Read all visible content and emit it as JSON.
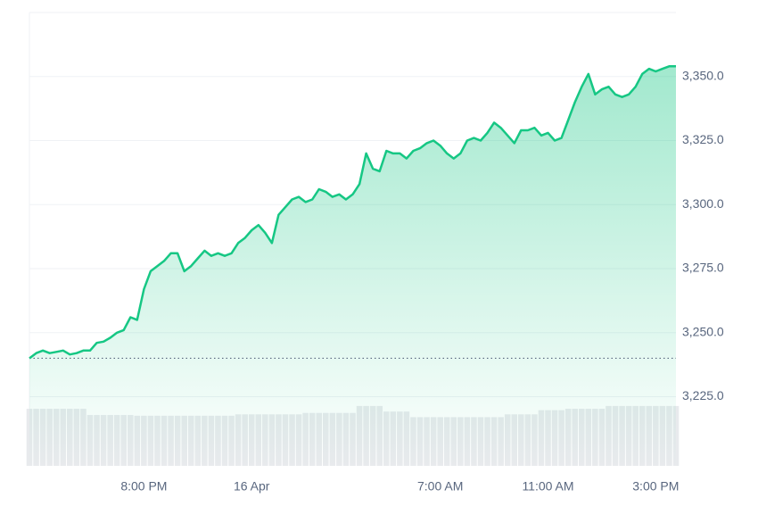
{
  "chart_data": {
    "type": "line",
    "categories": [
      null,
      null,
      null,
      null,
      null,
      null,
      null,
      null,
      null,
      null,
      null,
      null,
      null,
      null,
      null,
      null,
      null,
      "8:00 PM",
      null,
      null,
      null,
      null,
      null,
      null,
      null,
      null,
      null,
      null,
      null,
      null,
      null,
      null,
      null,
      "16 Apr",
      null,
      null,
      null,
      null,
      null,
      null,
      null,
      null,
      null,
      null,
      null,
      null,
      null,
      null,
      null,
      null,
      null,
      null,
      null,
      null,
      null,
      null,
      null,
      null,
      null,
      null,
      null,
      "7:00 AM",
      null,
      null,
      null,
      null,
      null,
      null,
      null,
      null,
      null,
      null,
      null,
      null,
      null,
      null,
      null,
      "11:00 AM",
      null,
      null,
      null,
      null,
      null,
      null,
      null,
      null,
      null,
      null,
      null,
      null,
      null,
      null,
      null,
      "3:00 PM",
      null,
      null,
      null
    ],
    "series": [
      {
        "color": "#16c784",
        "values": [
          3240,
          3242,
          3243,
          3242,
          3242.5,
          3243,
          3241.5,
          3242,
          3243,
          3243,
          3246,
          3246.5,
          3248,
          3250,
          3251,
          3256,
          3255,
          3267,
          3274,
          3276,
          3278,
          3281,
          3281,
          3274,
          3276,
          3279,
          3282,
          3280,
          3281,
          3280,
          3281,
          3285,
          3287,
          3290,
          3292,
          3289,
          3285,
          3296,
          3299,
          3302,
          3303,
          3301,
          3302,
          3306,
          3305,
          3303,
          3304,
          3302,
          3304,
          3308,
          3320,
          3314,
          3313,
          3321,
          3320,
          3320,
          3318,
          3321,
          3322,
          3324,
          3325,
          3323,
          3320,
          3318,
          3320,
          3325,
          3326,
          3325,
          3328,
          3332,
          3330,
          3327,
          3324,
          3329,
          3329,
          3330,
          3327,
          3328,
          3325,
          3326,
          3333,
          3340,
          3346,
          3351,
          3343,
          3345,
          3346,
          3343,
          3342,
          3343,
          3346,
          3351,
          3353,
          3352,
          3353,
          3354,
          3354
        ]
      }
    ],
    "volume": {
      "color": "#e8eaed",
      "ylim": [
        0,
        100
      ],
      "values": [
        82,
        82,
        82,
        82,
        82,
        82,
        82,
        82,
        82,
        73,
        73,
        73,
        73,
        73,
        73,
        73,
        72,
        72,
        72,
        72,
        72,
        72,
        72,
        72,
        72,
        72,
        72,
        72,
        72,
        72,
        72,
        74,
        74,
        74,
        74,
        74,
        74,
        74,
        74,
        74,
        74,
        76,
        76,
        76,
        76,
        76,
        76,
        76,
        76,
        86,
        86,
        86,
        86,
        78,
        78,
        78,
        78,
        70,
        70,
        70,
        70,
        70,
        70,
        70,
        70,
        70,
        70,
        70,
        70,
        70,
        70,
        74,
        74,
        74,
        74,
        74,
        80,
        80,
        80,
        80,
        82,
        82,
        82,
        82,
        82,
        82,
        86,
        86,
        86,
        86,
        86,
        86,
        86,
        86,
        86,
        86,
        86
      ]
    },
    "ylim": [
      3198,
      3375
    ],
    "yticks": [
      {
        "value": 3225,
        "label": "3,225.0"
      },
      {
        "value": 3250,
        "label": "3,250.0"
      },
      {
        "value": 3275,
        "label": "3,275.0"
      },
      {
        "value": 3300,
        "label": "3,300.0"
      },
      {
        "value": 3325,
        "label": "3,325.0"
      },
      {
        "value": 3350,
        "label": "3,350.0"
      }
    ],
    "grid": true
  }
}
